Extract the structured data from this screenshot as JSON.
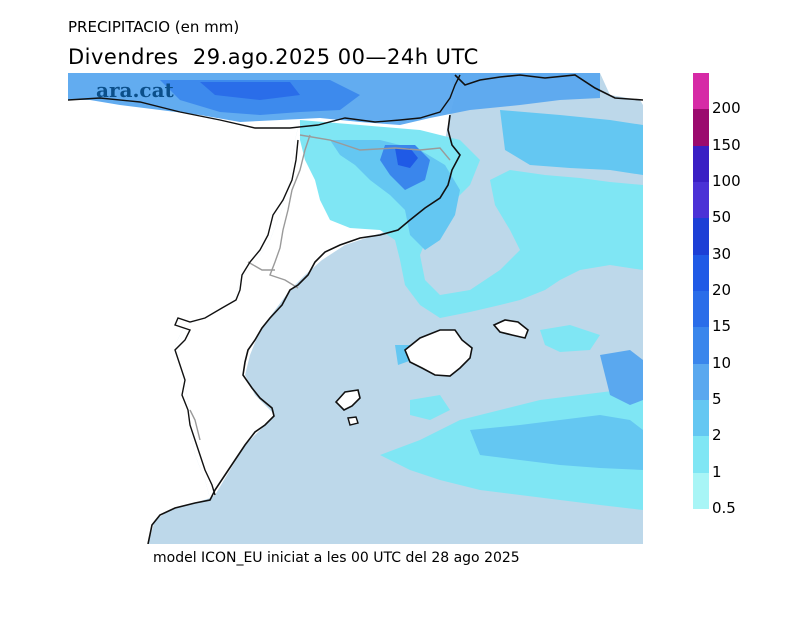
{
  "header": {
    "subtitle": "PRECIPITACIO (en mm)",
    "title": "Divendres  29.ago.2025 00—24h UTC"
  },
  "brand": "ara.cat",
  "footer": "model ICON_EU iniciat a les 00 UTC del 28 ago 2025",
  "legend": {
    "levels": [
      {
        "label": "200",
        "color": "#d62aa6"
      },
      {
        "label": "150",
        "color": "#9b0a6e"
      },
      {
        "label": "100",
        "color": "#3a1fc4"
      },
      {
        "label": "50",
        "color": "#4b32d6"
      },
      {
        "label": "30",
        "color": "#1c3fd6"
      },
      {
        "label": "20",
        "color": "#1f5ae6"
      },
      {
        "label": "15",
        "color": "#2a6de9"
      },
      {
        "label": "10",
        "color": "#3a86ec"
      },
      {
        "label": "5",
        "color": "#5aa8ef"
      },
      {
        "label": "2",
        "color": "#64c7f2"
      },
      {
        "label": "1",
        "color": "#7fe6f4"
      },
      {
        "label": "0.5",
        "color": "#a8f5f6"
      }
    ]
  },
  "colors": {
    "sea": "#bdd8ea",
    "land": "#ffffff",
    "coast": "#111111",
    "border": "#9a9a9a"
  }
}
